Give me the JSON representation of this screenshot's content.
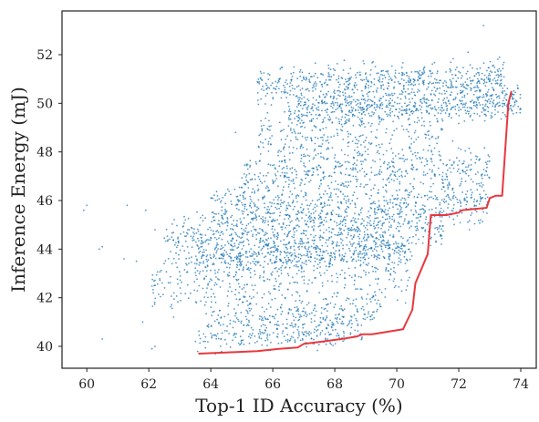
{
  "chart_data": {
    "type": "scatter",
    "title": "",
    "xlabel": "Top-1 ID Accuracy (%)",
    "ylabel": "Inference Energy (mJ)",
    "xlim": [
      59.2,
      74.5
    ],
    "ylim": [
      39.1,
      53.8
    ],
    "x_ticks": [
      60,
      62,
      64,
      66,
      68,
      70,
      72,
      74
    ],
    "y_ticks": [
      40,
      42,
      44,
      46,
      48,
      50,
      52
    ],
    "grid": false,
    "legend": "none",
    "colors": {
      "points": "#1f77b4",
      "frontier": "#e8383d",
      "axes": "#222222"
    },
    "point_clusters": [
      {
        "x_range": [
          65.5,
          73.5
        ],
        "y_center": 50.9,
        "y_spread": 0.35,
        "count": 550
      },
      {
        "x_range": [
          66.5,
          74.0
        ],
        "y_center": 49.9,
        "y_spread": 0.35,
        "count": 650
      },
      {
        "x_range": [
          65.5,
          71.5
        ],
        "y_center": 48.6,
        "y_spread": 0.6,
        "count": 280
      },
      {
        "x_range": [
          65.0,
          73.0
        ],
        "y_center": 47.2,
        "y_spread": 0.45,
        "count": 420
      },
      {
        "x_range": [
          64.0,
          73.0
        ],
        "y_center": 45.8,
        "y_spread": 0.55,
        "count": 650
      },
      {
        "x_range": [
          62.5,
          71.5
        ],
        "y_center": 44.7,
        "y_spread": 0.5,
        "count": 600
      },
      {
        "x_range": [
          63.5,
          70.5
        ],
        "y_center": 43.8,
        "y_spread": 0.4,
        "count": 550
      },
      {
        "x_range": [
          62.0,
          70.5
        ],
        "y_center": 42.6,
        "y_spread": 0.6,
        "count": 330
      },
      {
        "x_range": [
          64.0,
          69.5
        ],
        "y_center": 41.3,
        "y_spread": 0.45,
        "count": 260
      },
      {
        "x_range": [
          63.5,
          69.0
        ],
        "y_center": 40.5,
        "y_spread": 0.3,
        "count": 200
      }
    ],
    "sparse_points": [
      [
        59.9,
        45.6
      ],
      [
        60.0,
        45.8
      ],
      [
        60.4,
        44.0
      ],
      [
        60.5,
        44.1
      ],
      [
        60.5,
        40.3
      ],
      [
        61.2,
        43.6
      ],
      [
        61.3,
        45.8
      ],
      [
        61.6,
        43.5
      ],
      [
        61.8,
        41.0
      ],
      [
        62.2,
        44.8
      ],
      [
        62.1,
        39.9
      ],
      [
        62.2,
        40.0
      ],
      [
        62.7,
        43.9
      ],
      [
        61.9,
        45.6
      ],
      [
        64.8,
        48.8
      ],
      [
        63.2,
        43.4
      ],
      [
        62.8,
        41.2
      ],
      [
        72.8,
        53.2
      ],
      [
        72.3,
        52.1
      ],
      [
        73.3,
        50.3
      ]
    ],
    "series": [
      {
        "type": "line",
        "x": [
          63.6,
          64.5,
          65.5,
          66.2,
          66.8,
          67.0,
          67.6,
          68.2,
          68.7,
          68.9,
          69.2,
          70.2,
          70.5,
          70.6,
          71.0,
          71.1,
          71.6,
          72.0,
          72.1,
          72.9,
          73.0,
          73.2,
          73.4,
          73.6,
          73.7
        ],
        "y": [
          39.7,
          39.75,
          39.8,
          39.9,
          39.95,
          40.1,
          40.2,
          40.3,
          40.4,
          40.5,
          40.5,
          40.7,
          41.5,
          42.6,
          43.8,
          45.4,
          45.4,
          45.5,
          45.6,
          45.7,
          46.1,
          46.2,
          46.2,
          50.0,
          50.5
        ]
      }
    ]
  }
}
